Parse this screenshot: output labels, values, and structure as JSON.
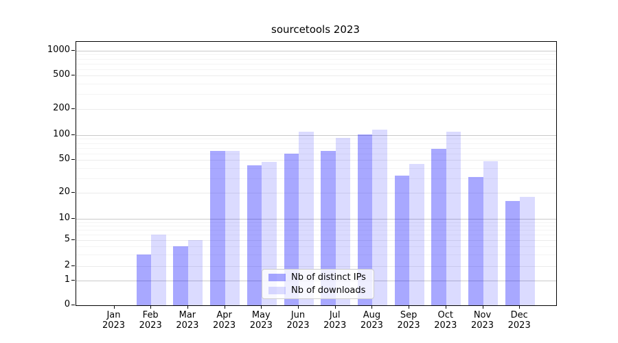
{
  "title": "sourcetools 2023",
  "legend": {
    "items": [
      {
        "label": "Nb of distinct IPs",
        "color": "rgba(0,0,255,0.34)"
      },
      {
        "label": "Nb of downloads",
        "color": "rgba(0,0,255,0.14)"
      }
    ]
  },
  "chart_data": {
    "type": "bar",
    "title": "sourcetools 2023",
    "categories": [
      "Jan",
      "Feb",
      "Mar",
      "Apr",
      "May",
      "Jun",
      "Jul",
      "Aug",
      "Sep",
      "Oct",
      "Nov",
      "Dec"
    ],
    "year_label": "2023",
    "series": [
      {
        "name": "Nb of distinct IPs",
        "color": "rgba(0,0,255,0.34)",
        "values": [
          0,
          3,
          4,
          64,
          43,
          60,
          64,
          102,
          32,
          68,
          31,
          16
        ]
      },
      {
        "name": "Nb of downloads",
        "color": "rgba(0,0,255,0.14)",
        "values": [
          0,
          6,
          5,
          64,
          47,
          110,
          92,
          115,
          45,
          110,
          48,
          18
        ]
      }
    ],
    "xlabel": "",
    "ylabel": "",
    "yscale": "asinh",
    "yticks": [
      0,
      1,
      2,
      5,
      10,
      20,
      50,
      100,
      200,
      500,
      1000
    ],
    "ylim": [
      0,
      1200
    ],
    "grid": true,
    "legend_position": "lower center"
  }
}
